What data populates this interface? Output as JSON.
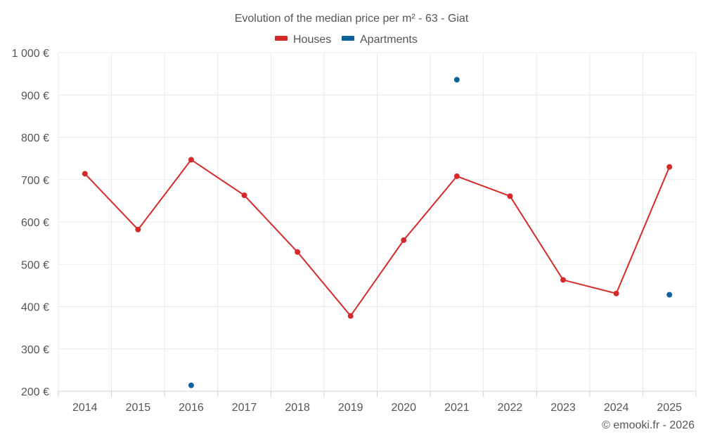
{
  "chart_data": {
    "type": "line",
    "title": "Evolution of the median price per m² - 63 - Giat",
    "categories": [
      "2014",
      "2015",
      "2016",
      "2017",
      "2018",
      "2019",
      "2020",
      "2021",
      "2022",
      "2023",
      "2024",
      "2025"
    ],
    "y_ticks": [
      200,
      300,
      400,
      500,
      600,
      700,
      800,
      900,
      1000
    ],
    "y_tick_labels": [
      "200 €",
      "300 €",
      "400 €",
      "500 €",
      "600 €",
      "700 €",
      "800 €",
      "900 €",
      "1 000 €"
    ],
    "ylim": [
      200,
      1000
    ],
    "series": [
      {
        "name": "Houses",
        "color": "#d62a2a",
        "values": [
          714,
          582,
          747,
          663,
          529,
          378,
          557,
          708,
          661,
          463,
          431,
          730
        ]
      },
      {
        "name": "Apartments",
        "color": "#0e639a",
        "values": [
          null,
          null,
          214,
          null,
          null,
          null,
          null,
          936,
          null,
          null,
          null,
          428
        ]
      }
    ],
    "credit": "© emooki.fr - 2026"
  }
}
